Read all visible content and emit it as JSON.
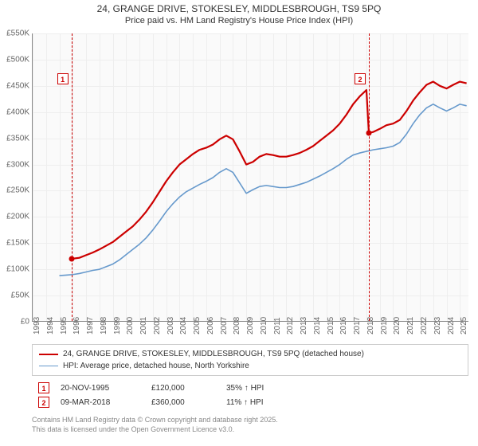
{
  "title": {
    "line1": "24, GRANGE DRIVE, STOKESLEY, MIDDLESBROUGH, TS9 5PQ",
    "line2": "Price paid vs. HM Land Registry's House Price Index (HPI)"
  },
  "chart": {
    "type": "line",
    "background_color": "#fafafa",
    "grid_color": "#eeeeee",
    "axis_color": "#888888",
    "x_years": [
      1993,
      1994,
      1995,
      1996,
      1997,
      1998,
      1999,
      2000,
      2001,
      2002,
      2003,
      2004,
      2005,
      2006,
      2007,
      2008,
      2009,
      2010,
      2011,
      2012,
      2013,
      2014,
      2015,
      2016,
      2017,
      2018,
      2019,
      2020,
      2021,
      2022,
      2023,
      2024,
      2025
    ],
    "xlim": [
      1993,
      2025.7
    ],
    "ylim": [
      0,
      550
    ],
    "ytick_step": 50,
    "yticks": [
      0,
      50,
      100,
      150,
      200,
      250,
      300,
      350,
      400,
      450,
      500,
      550
    ],
    "ytick_labels": [
      "£0",
      "£50K",
      "£100K",
      "£150K",
      "£200K",
      "£250K",
      "£300K",
      "£350K",
      "£400K",
      "£450K",
      "£500K",
      "£550K"
    ],
    "series": [
      {
        "name": "price_paid",
        "color": "#cc0000",
        "width": 2.2,
        "label": "24, GRANGE DRIVE, STOKESLEY, MIDDLESBROUGH, TS9 5PQ (detached house)",
        "data": [
          [
            1995.9,
            120
          ],
          [
            1996.5,
            122
          ],
          [
            1997,
            127
          ],
          [
            1997.5,
            132
          ],
          [
            1998,
            138
          ],
          [
            1998.5,
            145
          ],
          [
            1999,
            152
          ],
          [
            1999.5,
            162
          ],
          [
            2000,
            172
          ],
          [
            2000.5,
            182
          ],
          [
            2001,
            195
          ],
          [
            2001.5,
            210
          ],
          [
            2002,
            228
          ],
          [
            2002.5,
            248
          ],
          [
            2003,
            268
          ],
          [
            2003.5,
            285
          ],
          [
            2004,
            300
          ],
          [
            2004.5,
            310
          ],
          [
            2005,
            320
          ],
          [
            2005.5,
            328
          ],
          [
            2006,
            332
          ],
          [
            2006.5,
            338
          ],
          [
            2007,
            348
          ],
          [
            2007.5,
            355
          ],
          [
            2008,
            348
          ],
          [
            2008.5,
            325
          ],
          [
            2009,
            300
          ],
          [
            2009.5,
            305
          ],
          [
            2010,
            315
          ],
          [
            2010.5,
            320
          ],
          [
            2011,
            318
          ],
          [
            2011.5,
            315
          ],
          [
            2012,
            315
          ],
          [
            2012.5,
            318
          ],
          [
            2013,
            322
          ],
          [
            2013.5,
            328
          ],
          [
            2014,
            335
          ],
          [
            2014.5,
            345
          ],
          [
            2015,
            355
          ],
          [
            2015.5,
            365
          ],
          [
            2016,
            378
          ],
          [
            2016.5,
            395
          ],
          [
            2017,
            415
          ],
          [
            2017.5,
            430
          ],
          [
            2018,
            442
          ],
          [
            2018.18,
            360
          ],
          [
            2018.5,
            362
          ],
          [
            2019,
            368
          ],
          [
            2019.5,
            375
          ],
          [
            2020,
            378
          ],
          [
            2020.5,
            385
          ],
          [
            2021,
            402
          ],
          [
            2021.5,
            422
          ],
          [
            2022,
            438
          ],
          [
            2022.5,
            452
          ],
          [
            2023,
            458
          ],
          [
            2023.5,
            450
          ],
          [
            2024,
            445
          ],
          [
            2024.5,
            452
          ],
          [
            2025,
            458
          ],
          [
            2025.5,
            455
          ]
        ]
      },
      {
        "name": "hpi",
        "color": "#6699cc",
        "width": 1.6,
        "label": "HPI: Average price, detached house, North Yorkshire",
        "data": [
          [
            1995,
            88
          ],
          [
            1995.5,
            89
          ],
          [
            1996,
            90
          ],
          [
            1996.5,
            92
          ],
          [
            1997,
            95
          ],
          [
            1997.5,
            98
          ],
          [
            1998,
            100
          ],
          [
            1998.5,
            105
          ],
          [
            1999,
            110
          ],
          [
            1999.5,
            118
          ],
          [
            2000,
            128
          ],
          [
            2000.5,
            138
          ],
          [
            2001,
            148
          ],
          [
            2001.5,
            160
          ],
          [
            2002,
            175
          ],
          [
            2002.5,
            192
          ],
          [
            2003,
            210
          ],
          [
            2003.5,
            225
          ],
          [
            2004,
            238
          ],
          [
            2004.5,
            248
          ],
          [
            2005,
            255
          ],
          [
            2005.5,
            262
          ],
          [
            2006,
            268
          ],
          [
            2006.5,
            275
          ],
          [
            2007,
            285
          ],
          [
            2007.5,
            292
          ],
          [
            2008,
            285
          ],
          [
            2008.5,
            265
          ],
          [
            2009,
            245
          ],
          [
            2009.5,
            252
          ],
          [
            2010,
            258
          ],
          [
            2010.5,
            260
          ],
          [
            2011,
            258
          ],
          [
            2011.5,
            256
          ],
          [
            2012,
            256
          ],
          [
            2012.5,
            258
          ],
          [
            2013,
            262
          ],
          [
            2013.5,
            266
          ],
          [
            2014,
            272
          ],
          [
            2014.5,
            278
          ],
          [
            2015,
            285
          ],
          [
            2015.5,
            292
          ],
          [
            2016,
            300
          ],
          [
            2016.5,
            310
          ],
          [
            2017,
            318
          ],
          [
            2017.5,
            322
          ],
          [
            2018,
            325
          ],
          [
            2018.5,
            328
          ],
          [
            2019,
            330
          ],
          [
            2019.5,
            332
          ],
          [
            2020,
            335
          ],
          [
            2020.5,
            342
          ],
          [
            2021,
            358
          ],
          [
            2021.5,
            378
          ],
          [
            2022,
            395
          ],
          [
            2022.5,
            408
          ],
          [
            2023,
            415
          ],
          [
            2023.5,
            408
          ],
          [
            2024,
            402
          ],
          [
            2024.5,
            408
          ],
          [
            2025,
            415
          ],
          [
            2025.5,
            412
          ]
        ]
      }
    ],
    "markers": [
      {
        "n": "1",
        "year": 1995.9,
        "y": 120,
        "box_top": 50
      },
      {
        "n": "2",
        "year": 2018.18,
        "y": 360,
        "box_top": 50
      }
    ]
  },
  "datapoints": [
    {
      "n": "1",
      "date": "20-NOV-1995",
      "price": "£120,000",
      "hpi": "35% ↑ HPI"
    },
    {
      "n": "2",
      "date": "09-MAR-2018",
      "price": "£360,000",
      "hpi": "11% ↑ HPI"
    }
  ],
  "footer": {
    "line1": "Contains HM Land Registry data © Crown copyright and database right 2025.",
    "line2": "This data is licensed under the Open Government Licence v3.0."
  }
}
